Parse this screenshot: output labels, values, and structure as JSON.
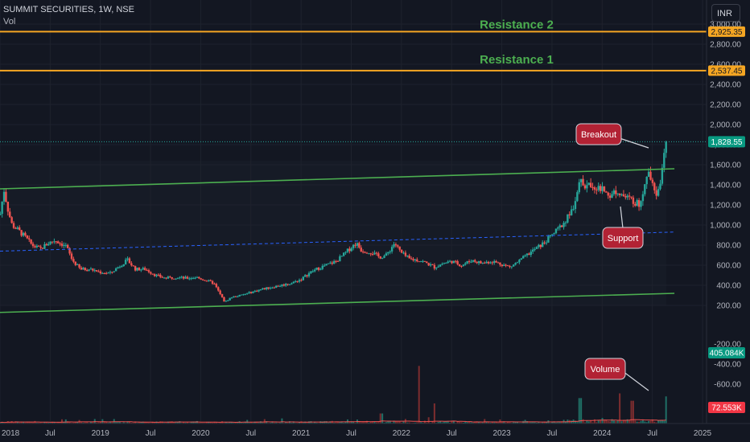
{
  "header": {
    "symbol_line": "SUMMIT SECURITIES, 1W, NSE",
    "vol_label": "Vol",
    "currency": "INR"
  },
  "levels": {
    "resistance2": {
      "label": "Resistance 2",
      "price": 2925.35,
      "tag": "2,925.35"
    },
    "resistance1": {
      "label": "Resistance 1",
      "price": 2537.45,
      "tag": "2,537.45"
    },
    "last_price": {
      "price": 1828.55,
      "tag": "1,828.55"
    },
    "volume_last": {
      "tag": "405.084K"
    },
    "volume_ma": {
      "tag": "72.553K"
    }
  },
  "annotations": {
    "breakout": "Breakout",
    "support": "Support",
    "volume": "Volume"
  },
  "colors": {
    "background": "#131722",
    "up": "#26a69a",
    "down": "#ef5350",
    "channel": "#4caf50",
    "resistance": "#f5a623",
    "midline": "#2962ff",
    "callout": "#b22234"
  },
  "chart_data": {
    "type": "candlestick",
    "price_axis_ticks": [
      "3,000.00",
      "2,800.00",
      "2,600.00",
      "2,400.00",
      "2,200.00",
      "2,000.00",
      "1,800.00",
      "1,600.00",
      "1,400.00",
      "1,200.00",
      "1,000.00",
      "800.00",
      "600.00",
      "400.00",
      "200.00"
    ],
    "price_axis_values": [
      3000,
      2800,
      2600,
      2400,
      2200,
      2000,
      1800,
      1600,
      1400,
      1200,
      1000,
      800,
      600,
      400,
      200
    ],
    "volume_axis_ticks": [
      "-200.00",
      "-400.00",
      "-600.00"
    ],
    "volume_axis_values": [
      200,
      400,
      600
    ],
    "time_axis_ticks": [
      "2018",
      "Jul",
      "2019",
      "Jul",
      "2020",
      "Jul",
      "2021",
      "Jul",
      "2022",
      "Jul",
      "2023",
      "Jul",
      "2024",
      "Jul",
      "2025"
    ],
    "time_axis_values": [
      2018.0,
      2018.5,
      2019.0,
      2019.5,
      2020.0,
      2020.5,
      2021.0,
      2021.5,
      2022.0,
      2022.5,
      2023.0,
      2023.5,
      2024.0,
      2024.5,
      2025.0
    ],
    "x_range": [
      2018.0,
      2025.0
    ],
    "y_range": [
      180,
      3000
    ],
    "trend_lines": [
      {
        "name": "upper-channel",
        "x": [
          2018.0,
          2024.72
        ],
        "y": [
          1360,
          1560
        ]
      },
      {
        "name": "lower-channel",
        "x": [
          2018.0,
          2024.72
        ],
        "y": [
          130,
          320
        ]
      },
      {
        "name": "mid-channel",
        "x": [
          2018.0,
          2024.72
        ],
        "y": [
          740,
          930
        ]
      }
    ],
    "price_path": [
      [
        2018.0,
        1100
      ],
      [
        2018.04,
        1350
      ],
      [
        2018.08,
        1150
      ],
      [
        2018.12,
        1000
      ],
      [
        2018.18,
        950
      ],
      [
        2018.25,
        880
      ],
      [
        2018.32,
        800
      ],
      [
        2018.4,
        760
      ],
      [
        2018.48,
        820
      ],
      [
        2018.55,
        850
      ],
      [
        2018.6,
        820
      ],
      [
        2018.66,
        790
      ],
      [
        2018.72,
        650
      ],
      [
        2018.8,
        560
      ],
      [
        2018.9,
        560
      ],
      [
        2019.0,
        530
      ],
      [
        2019.1,
        520
      ],
      [
        2019.2,
        600
      ],
      [
        2019.27,
        650
      ],
      [
        2019.35,
        560
      ],
      [
        2019.45,
        560
      ],
      [
        2019.55,
        500
      ],
      [
        2019.65,
        470
      ],
      [
        2019.75,
        480
      ],
      [
        2019.85,
        470
      ],
      [
        2019.95,
        480
      ],
      [
        2020.05,
        450
      ],
      [
        2020.13,
        420
      ],
      [
        2020.2,
        300
      ],
      [
        2020.24,
        230
      ],
      [
        2020.3,
        280
      ],
      [
        2020.4,
        300
      ],
      [
        2020.5,
        330
      ],
      [
        2020.6,
        360
      ],
      [
        2020.7,
        380
      ],
      [
        2020.8,
        400
      ],
      [
        2020.9,
        420
      ],
      [
        2021.0,
        460
      ],
      [
        2021.08,
        520
      ],
      [
        2021.15,
        560
      ],
      [
        2021.25,
        600
      ],
      [
        2021.35,
        640
      ],
      [
        2021.43,
        710
      ],
      [
        2021.5,
        780
      ],
      [
        2021.55,
        820
      ],
      [
        2021.6,
        750
      ],
      [
        2021.7,
        730
      ],
      [
        2021.78,
        680
      ],
      [
        2021.85,
        700
      ],
      [
        2021.93,
        820
      ],
      [
        2022.0,
        720
      ],
      [
        2022.08,
        660
      ],
      [
        2022.18,
        650
      ],
      [
        2022.25,
        620
      ],
      [
        2022.33,
        580
      ],
      [
        2022.42,
        620
      ],
      [
        2022.5,
        640
      ],
      [
        2022.6,
        600
      ],
      [
        2022.7,
        650
      ],
      [
        2022.8,
        620
      ],
      [
        2022.9,
        640
      ],
      [
        2023.0,
        610
      ],
      [
        2023.08,
        580
      ],
      [
        2023.17,
        640
      ],
      [
        2023.25,
        700
      ],
      [
        2023.33,
        760
      ],
      [
        2023.42,
        820
      ],
      [
        2023.5,
        900
      ],
      [
        2023.58,
        980
      ],
      [
        2023.67,
        1100
      ],
      [
        2023.72,
        1200
      ],
      [
        2023.77,
        1450
      ],
      [
        2023.82,
        1380
      ],
      [
        2023.9,
        1400
      ],
      [
        2024.0,
        1350
      ],
      [
        2024.08,
        1300
      ],
      [
        2024.15,
        1350
      ],
      [
        2024.22,
        1280
      ],
      [
        2024.3,
        1250
      ],
      [
        2024.37,
        1200
      ],
      [
        2024.42,
        1400
      ],
      [
        2024.46,
        1500
      ],
      [
        2024.5,
        1450
      ],
      [
        2024.55,
        1300
      ],
      [
        2024.6,
        1560
      ],
      [
        2024.64,
        1828
      ]
    ],
    "volume_spikes": [
      {
        "x": 2021.8,
        "v": 150
      },
      {
        "x": 2022.18,
        "v": 860
      },
      {
        "x": 2022.33,
        "v": 300
      },
      {
        "x": 2023.78,
        "v": 380
      },
      {
        "x": 2024.18,
        "v": 450
      },
      {
        "x": 2024.3,
        "v": 340
      },
      {
        "x": 2024.64,
        "v": 405
      }
    ]
  }
}
